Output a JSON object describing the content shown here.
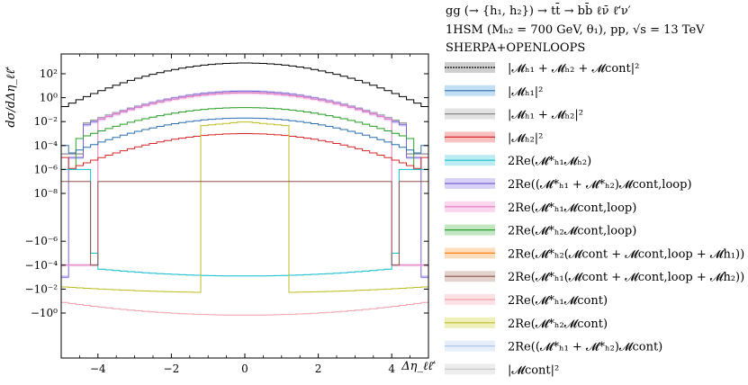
{
  "chart_data": {
    "type": "line",
    "title_lines": [
      "gg (→ {h₁, h₂}) → tt̄ → bb̄ ℓν̄ ℓ̄′ν′",
      "1HSM (Mₕ₂ = 700 GeV, θ₁),  pp,  √s = 13 TeV",
      "SHERPA+OPENLOOPS"
    ],
    "xlabel": "Δη_ℓℓ̄′",
    "ylabel": "dσ/dΔη_ℓℓ̄′",
    "xlim": [
      -5,
      5
    ],
    "x_ticks": [
      -4,
      -2,
      0,
      2,
      4
    ],
    "x_tick_labels": [
      "−4",
      "−2",
      "0",
      "2",
      "4"
    ],
    "y_scale": "symlog",
    "y_ticks": [
      "10^2",
      "10^0",
      "10^-2",
      "10^-4",
      "10^-6",
      "10^-8",
      "−10^-6",
      "−10^-4",
      "−10^-2",
      "−10^0"
    ],
    "y_tick_labels": [
      "10²",
      "10⁰",
      "10⁻²",
      "10⁻⁴",
      "10⁻⁶",
      "10⁻⁸",
      "−10⁻⁶",
      "−10⁻⁴",
      "−10⁻²",
      "−10⁰"
    ],
    "legend_position": "right",
    "series": [
      {
        "name": "|M_h1 + M_h2 + M_cont|²",
        "color": "#000000",
        "band": "#bbbbbb"
      },
      {
        "name": "|M_h1|²",
        "color": "#2a6fb0",
        "band": "#a8d2ee"
      },
      {
        "name": "|M_h1 + M_h2|²",
        "color": "#888888",
        "band": "#d5d5d5"
      },
      {
        "name": "|M_h2|²",
        "color": "#d62728",
        "band": "#f4a6a6"
      },
      {
        "name": "2Re(M*_h1 M_h2)",
        "color": "#17becf",
        "band": "#9de4ec"
      },
      {
        "name": "2Re((M*_h1 + M*_h2) M_cont,loop)",
        "color": "#7b61d9",
        "band": "#c9bff2"
      },
      {
        "name": "2Re(M*_h1 M_cont,loop)",
        "color": "#e377c2",
        "band": "#f6c4e6"
      },
      {
        "name": "2Re(M*_h2 M_cont,loop)",
        "color": "#2ca02c",
        "band": "#a6dca6"
      },
      {
        "name": "2Re(M*_h2 (M_cont + M_cont,loop + M_h1))",
        "color": "#ff7f0e",
        "band": "#ffd0a3"
      },
      {
        "name": "2Re(M*_h1 (M_cont + M_cont,loop + M_h2))",
        "color": "#8c564b",
        "band": "#d9bfb9"
      },
      {
        "name": "2Re(M*_h1 M_cont)",
        "color": "#f0a0a8",
        "band": "#fbd6da"
      },
      {
        "name": "2Re(M*_h2 M_cont)",
        "color": "#bcbd22",
        "band": "#e8e8a0"
      },
      {
        "name": "2Re((M*_h1 + M*_h2) M_cont)",
        "color": "#aec7e8",
        "band": "#dbe8f7"
      },
      {
        "name": "|M_cont|²",
        "color": "#c7c7c7",
        "band": "#e6e6e6"
      }
    ]
  },
  "legend": {
    "items": [
      {
        "label": "|𝓜ₕ₁ + 𝓜ₕ₂ + 𝓜cont|²"
      },
      {
        "label": "|𝓜ₕ₁|²"
      },
      {
        "label": "|𝓜ₕ₁ + 𝓜ₕ₂|²"
      },
      {
        "label": "|𝓜ₕ₂|²"
      },
      {
        "label": "2Re(𝓜*ₕ₁𝓜ₕ₂)"
      },
      {
        "label": "2Re((𝓜*ₕ₁ + 𝓜*ₕ₂)𝓜cont,loop)"
      },
      {
        "label": "2Re(𝓜*ₕ₁𝓜cont,loop)"
      },
      {
        "label": "2Re(𝓜*ₕ₂𝓜cont,loop)"
      },
      {
        "label": "2Re(𝓜*ₕ₂(𝓜cont + 𝓜cont,loop + 𝓜h₁))"
      },
      {
        "label": "2Re(𝓜*ₕ₁(𝓜cont + 𝓜cont,loop + 𝓜h₂))"
      },
      {
        "label": "2Re(𝓜*ₕ₁𝓜cont)"
      },
      {
        "label": "2Re(𝓜*ₕ₂𝓜cont)"
      },
      {
        "label": "2Re((𝓜*ₕ₁ + 𝓜*ₕ₂)𝓜cont)"
      },
      {
        "label": "|𝓜cont|²"
      }
    ]
  }
}
